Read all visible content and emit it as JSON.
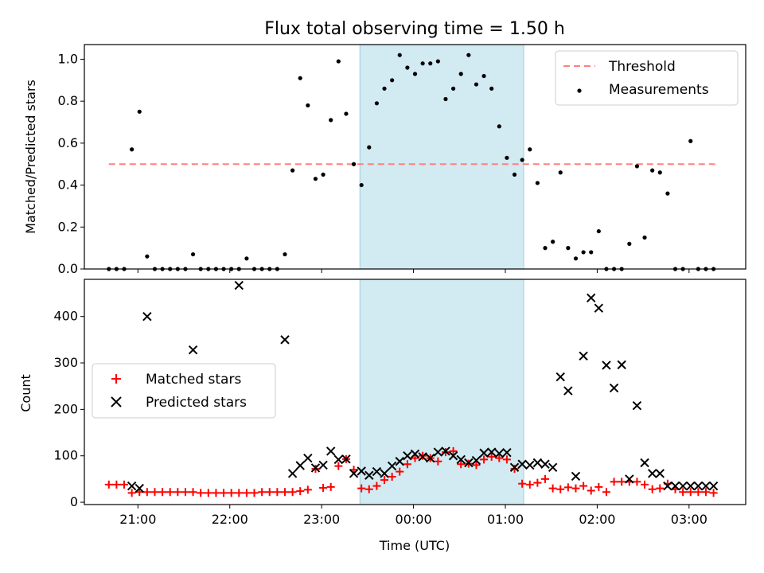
{
  "chart_data": [
    {
      "type": "scatter",
      "title": "Flux total observing time = 1.50 h",
      "xlabel": "",
      "ylabel": "Matched/Predicted stars",
      "ylim": [
        0,
        1.07
      ],
      "yticks": [
        "0.0",
        "0.2",
        "0.4",
        "0.6",
        "0.8",
        "1.0"
      ],
      "xticks": [
        "21:00",
        "22:00",
        "23:00",
        "00:00",
        "01:00",
        "02:00",
        "03:00"
      ],
      "xtick_labels_shown": false,
      "xlim": [
        "20:25",
        "03:37"
      ],
      "shaded_interval": [
        "23:25",
        "01:12"
      ],
      "shade_color": "#add8e6",
      "legend_location": "upper right",
      "threshold": {
        "name": "Threshold",
        "value": 0.5,
        "x_range": [
          "20:41",
          "03:17"
        ],
        "color": "#ff8080",
        "style": "dashed"
      },
      "series": [
        {
          "name": "Measurements",
          "color": "#000000",
          "marker": "dot",
          "x": [
            "20:41",
            "20:46",
            "20:51",
            "20:56",
            "21:01",
            "21:06",
            "21:11",
            "21:16",
            "21:21",
            "21:26",
            "21:31",
            "21:36",
            "21:41",
            "21:46",
            "21:51",
            "21:56",
            "22:01",
            "22:06",
            "22:11",
            "22:16",
            "22:21",
            "22:26",
            "22:31",
            "22:36",
            "22:41",
            "22:46",
            "22:51",
            "22:56",
            "23:01",
            "23:06",
            "23:11",
            "23:16",
            "23:21",
            "23:26",
            "23:31",
            "23:36",
            "23:41",
            "23:46",
            "23:51",
            "23:56",
            "00:01",
            "00:06",
            "00:11",
            "00:16",
            "00:21",
            "00:26",
            "00:31",
            "00:36",
            "00:41",
            "00:46",
            "00:51",
            "00:56",
            "01:01",
            "01:06",
            "01:11",
            "01:16",
            "01:21",
            "01:26",
            "01:31",
            "01:36",
            "01:41",
            "01:46",
            "01:51",
            "01:56",
            "02:01",
            "02:06",
            "02:11",
            "02:16",
            "02:21",
            "02:26",
            "02:31",
            "02:36",
            "02:41",
            "02:46",
            "02:51",
            "02:56",
            "03:01",
            "03:06",
            "03:11",
            "03:16"
          ],
          "y": [
            0.0,
            0.0,
            0.0,
            0.57,
            0.75,
            0.06,
            0.0,
            0.0,
            0.0,
            0.0,
            0.0,
            0.07,
            0.0,
            0.0,
            0.0,
            0.0,
            0.0,
            0.0,
            0.05,
            0.0,
            0.0,
            0.0,
            0.0,
            0.07,
            0.47,
            0.91,
            0.78,
            0.43,
            0.45,
            0.71,
            0.99,
            0.74,
            0.5,
            0.4,
            0.58,
            0.79,
            0.86,
            0.9,
            1.02,
            0.96,
            0.93,
            0.98,
            0.98,
            0.99,
            0.81,
            0.86,
            0.93,
            1.02,
            0.88,
            0.92,
            0.86,
            0.68,
            0.53,
            0.45,
            0.52,
            0.57,
            0.41,
            0.1,
            0.13,
            0.46,
            0.1,
            0.05,
            0.08,
            0.08,
            0.18,
            0.0,
            0.0,
            0.0,
            0.12,
            0.49,
            0.15,
            0.47,
            0.46,
            0.36,
            0.0,
            0.0,
            0.61,
            0.0,
            0.0,
            0.0
          ]
        }
      ]
    },
    {
      "type": "scatter",
      "title": "",
      "xlabel": "Time (UTC)",
      "ylabel": "Count",
      "ylim": [
        -5,
        480
      ],
      "yticks": [
        "0",
        "100",
        "200",
        "300",
        "400"
      ],
      "xticks": [
        "21:00",
        "22:00",
        "23:00",
        "00:00",
        "01:00",
        "02:00",
        "03:00"
      ],
      "xtick_labels_shown": true,
      "xlim": [
        "20:25",
        "03:37"
      ],
      "shaded_interval": [
        "23:25",
        "01:12"
      ],
      "shade_color": "#add8e6",
      "legend_location": "center left",
      "series": [
        {
          "name": "Matched stars",
          "color": "#ff0000",
          "marker": "plus",
          "x": [
            "20:41",
            "20:46",
            "20:51",
            "20:56",
            "21:01",
            "21:06",
            "21:11",
            "21:16",
            "21:21",
            "21:26",
            "21:31",
            "21:36",
            "21:41",
            "21:46",
            "21:51",
            "21:56",
            "22:01",
            "22:06",
            "22:11",
            "22:16",
            "22:21",
            "22:26",
            "22:31",
            "22:36",
            "22:41",
            "22:46",
            "22:51",
            "22:56",
            "23:01",
            "23:06",
            "23:11",
            "23:16",
            "23:21",
            "23:26",
            "23:31",
            "23:36",
            "23:41",
            "23:46",
            "23:51",
            "23:56",
            "00:01",
            "00:06",
            "00:11",
            "00:16",
            "00:21",
            "00:26",
            "00:31",
            "00:36",
            "00:41",
            "00:46",
            "00:51",
            "00:56",
            "01:01",
            "01:06",
            "01:11",
            "01:16",
            "01:21",
            "01:26",
            "01:31",
            "01:36",
            "01:41",
            "01:46",
            "01:51",
            "01:56",
            "02:01",
            "02:06",
            "02:11",
            "02:16",
            "02:21",
            "02:26",
            "02:31",
            "02:36",
            "02:41",
            "02:46",
            "02:51",
            "02:56",
            "03:01",
            "03:06",
            "03:11",
            "03:16"
          ],
          "y": [
            38,
            38,
            38,
            20,
            22,
            22,
            22,
            22,
            22,
            22,
            22,
            22,
            20,
            20,
            20,
            20,
            20,
            20,
            20,
            20,
            22,
            22,
            22,
            22,
            22,
            24,
            27,
            72,
            31,
            33,
            78,
            93,
            70,
            30,
            28,
            35,
            48,
            55,
            66,
            82,
            95,
            100,
            95,
            88,
            108,
            110,
            82,
            83,
            80,
            92,
            98,
            95,
            92,
            72,
            40,
            38,
            42,
            50,
            30,
            28,
            32,
            30,
            35,
            25,
            33,
            22,
            44,
            44,
            44,
            44,
            38,
            28,
            30,
            40,
            28,
            22,
            22,
            22,
            22,
            20
          ]
        },
        {
          "name": "Predicted stars",
          "color": "#000000",
          "marker": "x",
          "x": [
            "20:56",
            "21:01",
            "21:06",
            "21:36",
            "22:06",
            "22:36",
            "22:41",
            "22:46",
            "22:51",
            "22:56",
            "23:01",
            "23:06",
            "23:11",
            "23:16",
            "23:21",
            "23:26",
            "23:31",
            "23:36",
            "23:41",
            "23:46",
            "23:51",
            "23:56",
            "00:01",
            "00:06",
            "00:11",
            "00:16",
            "00:21",
            "00:26",
            "00:31",
            "00:36",
            "00:41",
            "00:46",
            "00:51",
            "00:56",
            "01:01",
            "01:06",
            "01:11",
            "01:16",
            "01:21",
            "01:26",
            "01:31",
            "01:36",
            "01:41",
            "01:46",
            "01:51",
            "01:56",
            "02:01",
            "02:06",
            "02:11",
            "02:16",
            "02:21",
            "02:26",
            "02:31",
            "02:36",
            "02:41",
            "02:46",
            "02:51",
            "02:56",
            "03:01",
            "03:06",
            "03:11",
            "03:16"
          ],
          "y": [
            35,
            30,
            400,
            328,
            467,
            350,
            62,
            79,
            95,
            74,
            80,
            110,
            92,
            93,
            62,
            67,
            58,
            66,
            62,
            78,
            88,
            100,
            104,
            98,
            95,
            108,
            110,
            100,
            92,
            85,
            90,
            106,
            108,
            105,
            107,
            75,
            82,
            80,
            85,
            82,
            75,
            270,
            240,
            56,
            315,
            440,
            418,
            295,
            246,
            296,
            50,
            208,
            85,
            62,
            62,
            35,
            35,
            35,
            35,
            35,
            35,
            35
          ]
        }
      ]
    }
  ]
}
